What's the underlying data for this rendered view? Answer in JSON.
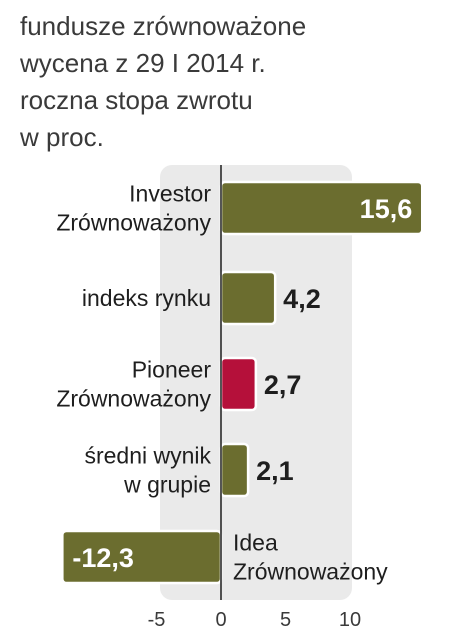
{
  "chart_data": {
    "type": "bar",
    "orientation": "horizontal",
    "title": "fundusze zrównoważone",
    "subtitle": [
      "wycena z 29 I 2014 r.",
      "roczna stopa zwrotu",
      "w proc."
    ],
    "categories": [
      [
        "Investor",
        "Zrównoważony"
      ],
      [
        "indeks rynku"
      ],
      [
        "Pioneer",
        "Zrównoważony"
      ],
      [
        "średni wynik",
        "w grupie"
      ],
      [
        "Idea",
        "Zrównoważony"
      ]
    ],
    "values": [
      15.6,
      4.2,
      2.7,
      2.1,
      -12.3
    ],
    "value_labels": [
      "15,6",
      "4,2",
      "2,7",
      "2,1",
      "-12,3"
    ],
    "bar_colors": [
      "#6b6d2f",
      "#6b6d2f",
      "#b5103a",
      "#6b6d2f",
      "#6b6d2f"
    ],
    "ticks": [
      -5,
      0,
      5,
      10
    ],
    "tick_labels": [
      "-5",
      "0",
      "5",
      "10"
    ],
    "xlim": [
      -12.3,
      15.6
    ],
    "grid": false,
    "legend": "none",
    "xlabel": "",
    "ylabel": ""
  }
}
